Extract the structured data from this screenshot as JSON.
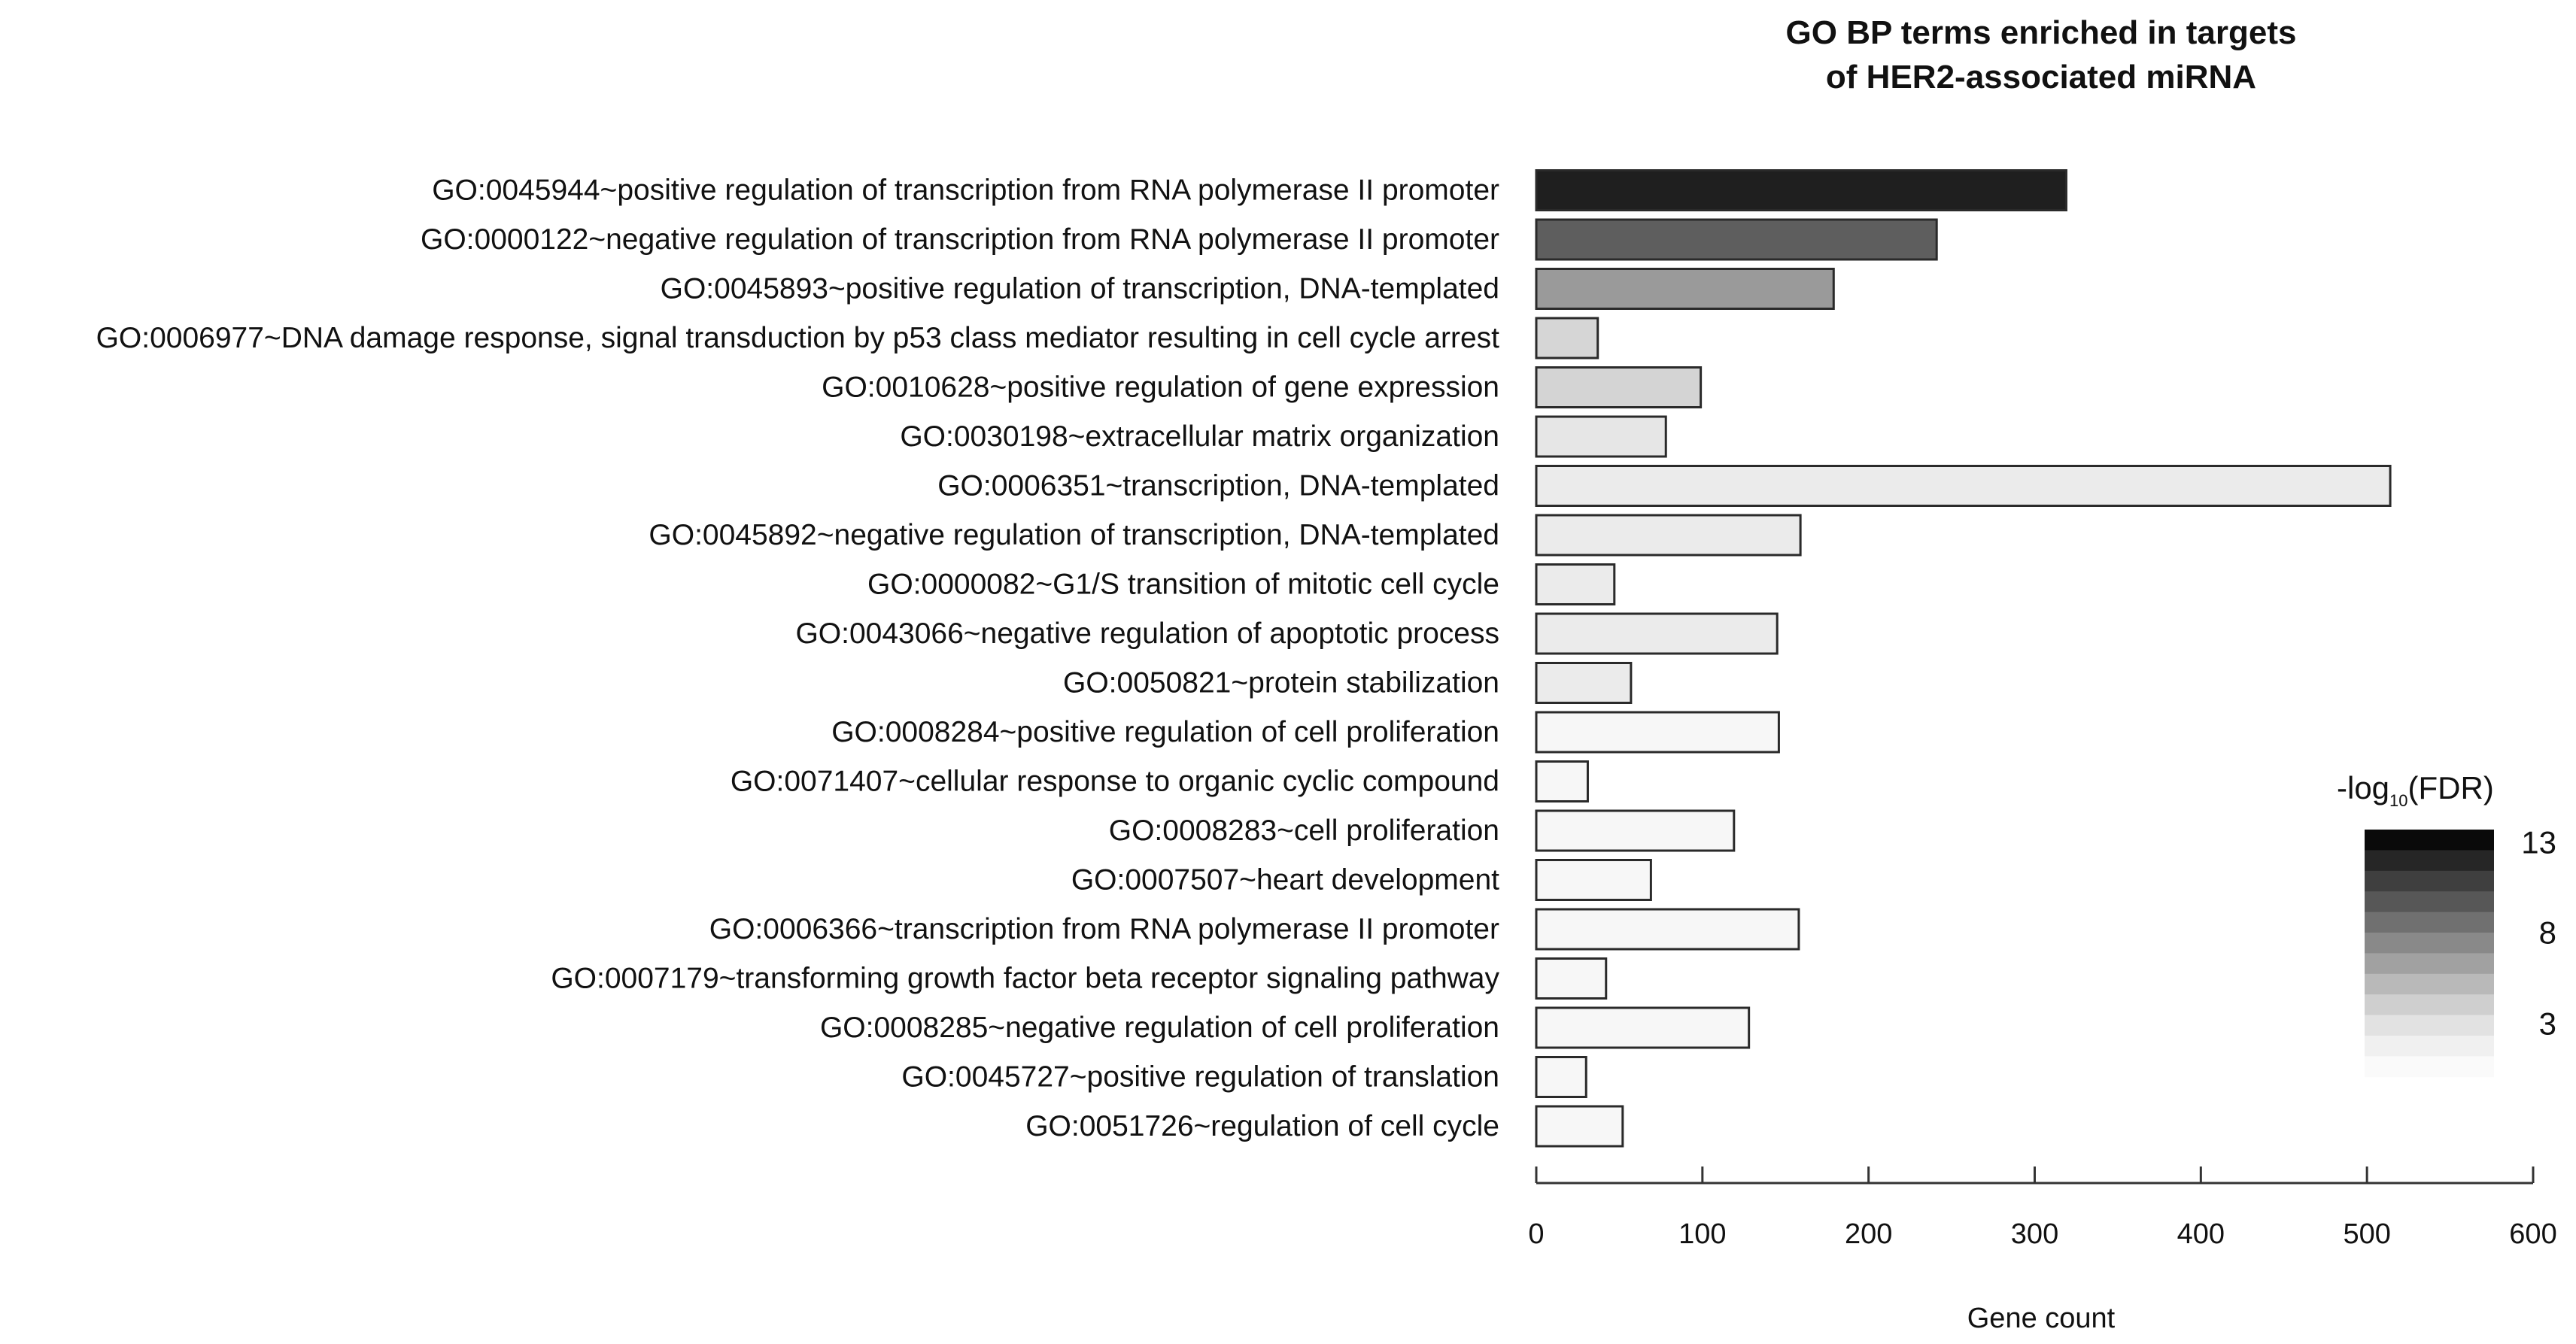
{
  "chart_data": {
    "type": "bar",
    "orientation": "horizontal",
    "title": [
      "GO BP terms enriched in targets",
      "of HER2-associated miRNA"
    ],
    "xlabel": "Gene count",
    "ylabel": "",
    "xlim": [
      0,
      600
    ],
    "x_ticks": [
      0,
      100,
      200,
      300,
      400,
      500,
      600
    ],
    "grid": false,
    "categories": [
      "GO:0045944~positive regulation of transcription from RNA polymerase II promoter",
      "GO:0000122~negative regulation of transcription from RNA polymerase II promoter",
      "GO:0045893~positive regulation of transcription, DNA-templated",
      "GO:0006977~DNA damage response, signal transduction by p53 class mediator resulting in cell cycle arrest",
      "GO:0010628~positive regulation of gene expression",
      "GO:0030198~extracellular matrix organization",
      "GO:0006351~transcription, DNA-templated",
      "GO:0045892~negative regulation of transcription, DNA-templated",
      "GO:0000082~G1/S transition of mitotic cell cycle",
      "GO:0043066~negative regulation of apoptotic process",
      "GO:0050821~protein stabilization",
      "GO:0008284~positive regulation of cell proliferation",
      "GO:0071407~cellular response to organic cyclic compound",
      "GO:0008283~cell proliferation",
      "GO:0007507~heart development",
      "GO:0006366~transcription from RNA polymerase II promoter",
      "GO:0007179~transforming growth factor beta receptor signaling pathway",
      "GO:0008285~negative regulation of cell proliferation",
      "GO:0045727~positive regulation of translation",
      "GO:0051726~regulation of cell cycle"
    ],
    "values": [
      319,
      241,
      179,
      37,
      99,
      78,
      514,
      159,
      47,
      145,
      57,
      146,
      31,
      119,
      69,
      158,
      42,
      128,
      30,
      52
    ],
    "colors": [
      "#1f1f1f",
      "#5e5e5e",
      "#9a9a9a",
      "#d6d6d6",
      "#d4d4d4",
      "#e6e6e6",
      "#ebebeb",
      "#ebebeb",
      "#ebebeb",
      "#ebebeb",
      "#ebebeb",
      "#f7f7f7",
      "#f7f7f7",
      "#f7f7f7",
      "#f7f7f7",
      "#f7f7f7",
      "#f7f7f7",
      "#f7f7f7",
      "#f7f7f7",
      "#f7f7f7"
    ],
    "legend": {
      "title_main": "-log",
      "title_sub": "10",
      "title_end": "(FDR)",
      "position": "right",
      "labels": [
        "13",
        "8",
        "3"
      ],
      "gradient": [
        "#0a0a0a",
        "#262626",
        "#3f3f3f",
        "#575757",
        "#707070",
        "#898989",
        "#a1a1a1",
        "#b9b9b9",
        "#cfcfcf",
        "#e2e2e2",
        "#f0f0f0",
        "#fafafa"
      ]
    }
  }
}
